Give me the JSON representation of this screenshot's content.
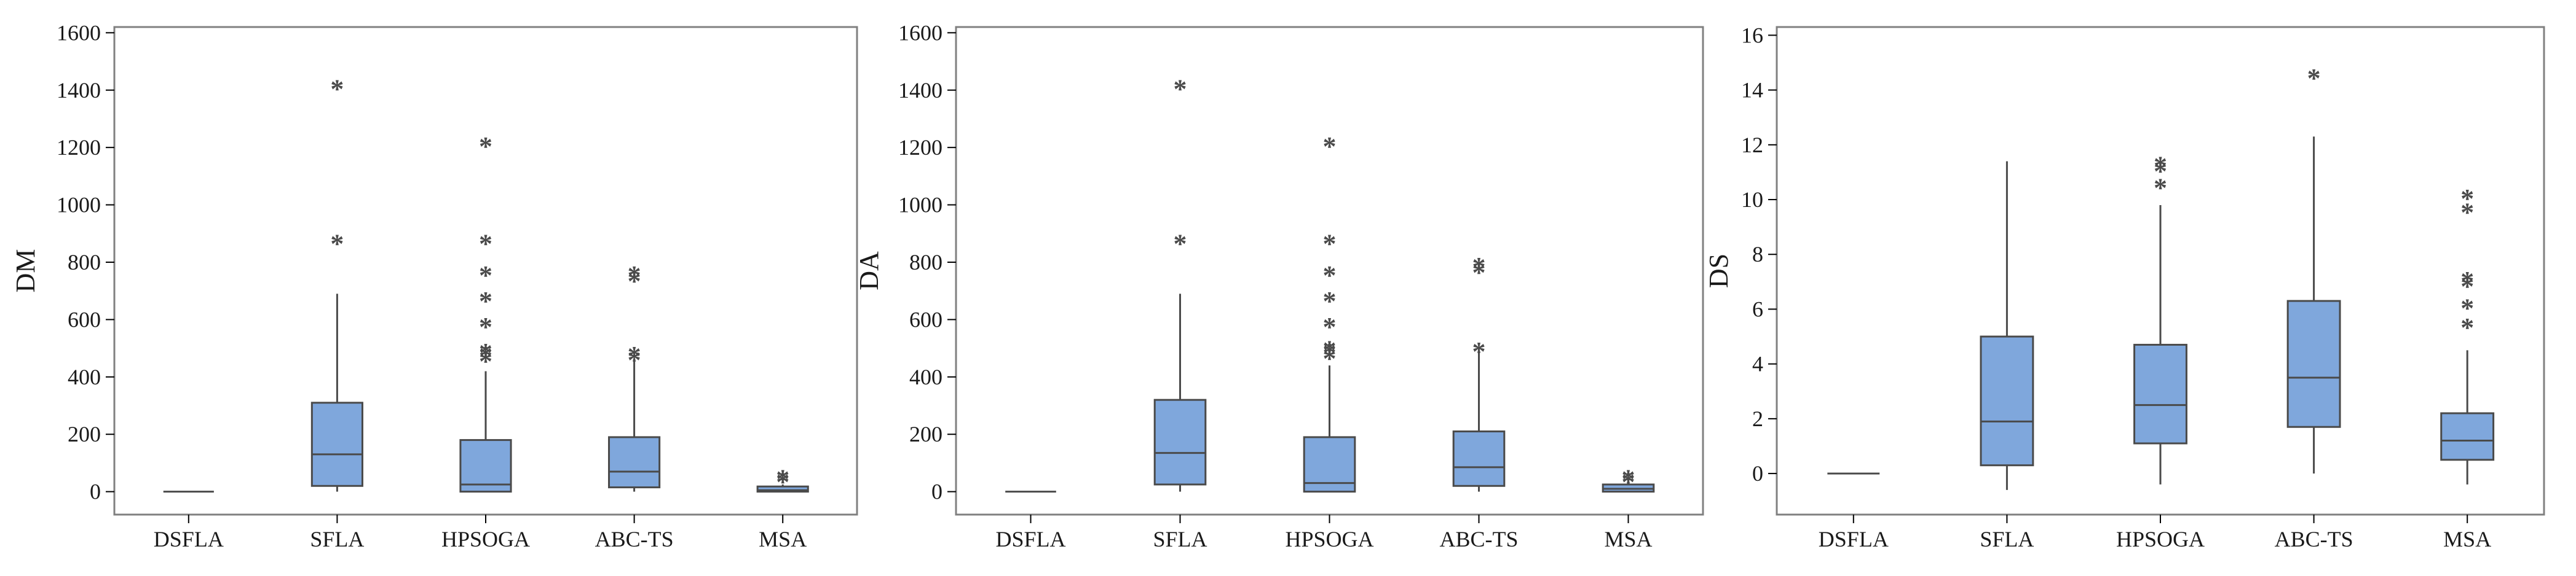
{
  "colors": {
    "box_fill": "#7fa7dc",
    "line": "#4a4a4a",
    "frame": "#808080"
  },
  "chart_data": [
    {
      "type": "boxplot",
      "ylabel": "DM",
      "ylim": [
        -80,
        1620
      ],
      "yticks": [
        0,
        200,
        400,
        600,
        800,
        1000,
        1200,
        1400,
        1600
      ],
      "categories": [
        "DSFLA",
        "SFLA",
        "HPSOGA",
        "ABC-TS",
        "MSA"
      ],
      "boxes": [
        {
          "whisker_low": 0,
          "q1": 0,
          "median": 0,
          "q3": 0,
          "whisker_high": 0,
          "outliers": []
        },
        {
          "whisker_low": 0,
          "q1": 20,
          "median": 130,
          "q3": 310,
          "whisker_high": 690,
          "outliers": [
            880,
            1420
          ]
        },
        {
          "whisker_low": 0,
          "q1": 0,
          "median": 25,
          "q3": 180,
          "whisker_high": 420,
          "outliers": [
            470,
            490,
            500,
            590,
            680,
            770,
            880,
            1220
          ]
        },
        {
          "whisker_low": 0,
          "q1": 15,
          "median": 70,
          "q3": 190,
          "whisker_high": 460,
          "outliers": [
            475,
            490,
            750,
            770
          ]
        },
        {
          "whisker_low": 0,
          "q1": 0,
          "median": 5,
          "q3": 18,
          "whisker_high": 25,
          "outliers": [
            50,
            60
          ]
        }
      ]
    },
    {
      "type": "boxplot",
      "ylabel": "DA",
      "ylim": [
        -80,
        1620
      ],
      "yticks": [
        0,
        200,
        400,
        600,
        800,
        1000,
        1200,
        1400,
        1600
      ],
      "categories": [
        "DSFLA",
        "SFLA",
        "HPSOGA",
        "ABC-TS",
        "MSA"
      ],
      "boxes": [
        {
          "whisker_low": 0,
          "q1": 0,
          "median": 0,
          "q3": 0,
          "whisker_high": 0,
          "outliers": []
        },
        {
          "whisker_low": 0,
          "q1": 25,
          "median": 135,
          "q3": 320,
          "whisker_high": 690,
          "outliers": [
            880,
            1420
          ]
        },
        {
          "whisker_low": 0,
          "q1": 0,
          "median": 30,
          "q3": 190,
          "whisker_high": 440,
          "outliers": [
            480,
            500,
            510,
            590,
            680,
            770,
            880,
            1220
          ]
        },
        {
          "whisker_low": 0,
          "q1": 20,
          "median": 85,
          "q3": 210,
          "whisker_high": 500,
          "outliers": [
            505,
            780,
            800
          ]
        },
        {
          "whisker_low": 0,
          "q1": 0,
          "median": 10,
          "q3": 25,
          "whisker_high": 30,
          "outliers": [
            50,
            60
          ]
        }
      ]
    },
    {
      "type": "boxplot",
      "ylabel": "DS",
      "ylim": [
        -1.5,
        16.3
      ],
      "yticks": [
        0,
        2,
        4,
        6,
        8,
        10,
        12,
        14,
        16
      ],
      "categories": [
        "DSFLA",
        "SFLA",
        "HPSOGA",
        "ABC-TS",
        "MSA"
      ],
      "boxes": [
        {
          "whisker_low": 0,
          "q1": 0,
          "median": 0,
          "q3": 0,
          "whisker_high": 0,
          "outliers": []
        },
        {
          "whisker_low": -0.6,
          "q1": 0.3,
          "median": 1.9,
          "q3": 5.0,
          "whisker_high": 11.4,
          "outliers": []
        },
        {
          "whisker_low": -0.4,
          "q1": 1.1,
          "median": 2.5,
          "q3": 4.7,
          "whisker_high": 9.8,
          "outliers": [
            10.6,
            11.2,
            11.4
          ]
        },
        {
          "whisker_low": 0,
          "q1": 1.7,
          "median": 3.5,
          "q3": 6.3,
          "whisker_high": 12.3,
          "outliers": [
            14.6
          ]
        },
        {
          "whisker_low": -0.4,
          "q1": 0.5,
          "median": 1.2,
          "q3": 2.2,
          "whisker_high": 4.5,
          "outliers": [
            5.5,
            6.2,
            7.0,
            7.2,
            9.7,
            10.2
          ]
        }
      ]
    }
  ]
}
